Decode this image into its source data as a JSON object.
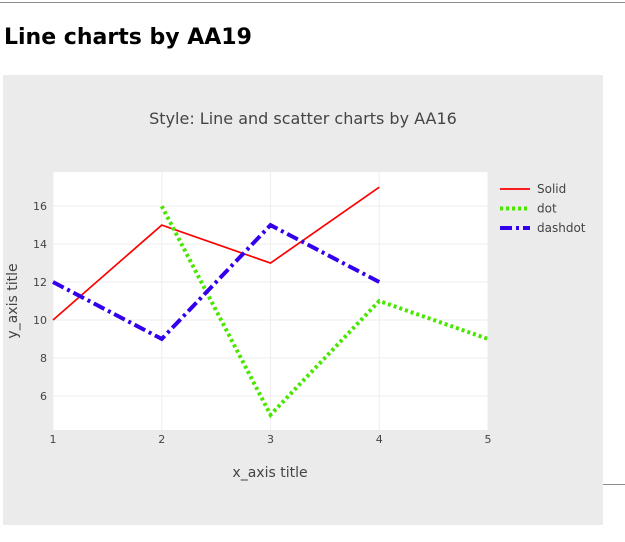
{
  "page": {
    "heading": "Line charts by AA19"
  },
  "chart_data": {
    "type": "line",
    "title": "Style: Line and scatter charts by AA16",
    "xlabel": "x_axis title",
    "ylabel": "y_axis title",
    "xlim": [
      1,
      5
    ],
    "ylim": [
      4.2,
      17.8
    ],
    "x_ticks": [
      1,
      2,
      3,
      4,
      5
    ],
    "y_ticks": [
      6,
      8,
      10,
      12,
      14,
      16
    ],
    "grid": true,
    "legend_position": "top-right",
    "series": [
      {
        "name": "Solid",
        "x": [
          1,
          2,
          3,
          4
        ],
        "y": [
          10,
          15,
          13,
          17
        ],
        "color": "#ff0000",
        "dash": "solid"
      },
      {
        "name": "dot",
        "x": [
          2,
          3,
          4,
          5
        ],
        "y": [
          16,
          5,
          11,
          9
        ],
        "color": "#49e600",
        "dash": "dot"
      },
      {
        "name": "dashdot",
        "x": [
          1,
          2,
          3,
          4
        ],
        "y": [
          12,
          9,
          15,
          12
        ],
        "color": "#3300ee",
        "dash": "dashdot"
      }
    ]
  }
}
